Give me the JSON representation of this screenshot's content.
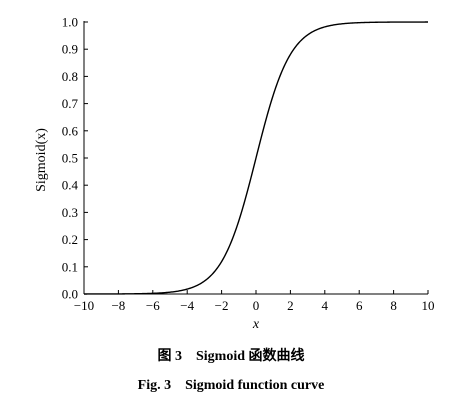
{
  "chart_data": {
    "type": "line",
    "xlabel": "x",
    "ylabel": "Sigmoid(x)",
    "xlim": [
      -10,
      10
    ],
    "ylim": [
      0,
      1.0
    ],
    "x_ticks": [
      -10,
      -8,
      -6,
      -4,
      -2,
      0,
      2,
      4,
      6,
      8,
      10
    ],
    "x_tick_labels": [
      "−10",
      "−8",
      "−6",
      "−4",
      "−2",
      "0",
      "2",
      "4",
      "6",
      "8",
      "10"
    ],
    "y_ticks": [
      0,
      0.1,
      0.2,
      0.3,
      0.4,
      0.5,
      0.6,
      0.7,
      0.8,
      0.9,
      1.0
    ],
    "y_tick_labels": [
      "0.0",
      "0.1",
      "0.2",
      "0.3",
      "0.4",
      "0.5",
      "0.6",
      "0.7",
      "0.8",
      "0.9",
      "1.0"
    ],
    "grid": false,
    "series": [
      {
        "x": [
          -10,
          -9,
          -8,
          -7,
          -6,
          -5,
          -4,
          -3,
          -2,
          -1,
          0,
          1,
          2,
          3,
          4,
          5,
          6,
          7,
          8,
          9,
          10
        ],
        "y": [
          4.54e-05,
          0.000123,
          0.000335,
          0.000911,
          0.00247,
          0.00669,
          0.018,
          0.0474,
          0.1192,
          0.2689,
          0.5,
          0.7311,
          0.8808,
          0.9526,
          0.982,
          0.9933,
          0.9975,
          0.9991,
          0.99966,
          0.99988,
          0.99995
        ],
        "color": "#000000"
      }
    ]
  },
  "caption": {
    "chinese": "图 3    Sigmoid 函数曲线",
    "english": "Fig. 3    Sigmoid function curve"
  }
}
